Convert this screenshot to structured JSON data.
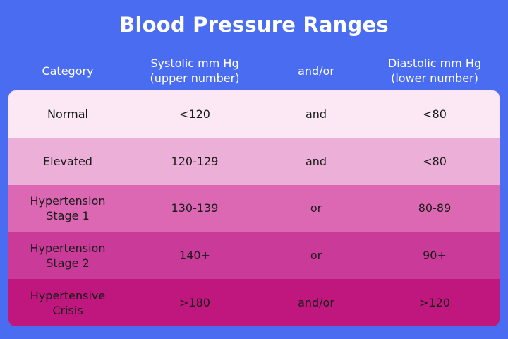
{
  "title": "Blood Pressure Ranges",
  "header": {
    "category": "Category",
    "systolic": "Systolic mm Hg\n(upper number)",
    "andor": "and/or",
    "diastolic": "Diastolic mm Hg\n(lower number)"
  },
  "rows": [
    {
      "category": "Normal",
      "systolic": "<120",
      "andor": "and",
      "diastolic": "<80",
      "color": "#fbe8f4"
    },
    {
      "category": "Elevated",
      "systolic": "120-129",
      "andor": "and",
      "diastolic": "<80",
      "color": "#ecb0d8"
    },
    {
      "category": "Hypertension\nStage 1",
      "systolic": "130-139",
      "andor": "or",
      "diastolic": "80-89",
      "color": "#dc68b4"
    },
    {
      "category": "Hypertension\nStage 2",
      "systolic": "140+",
      "andor": "or",
      "diastolic": "90+",
      "color": "#ca3a98"
    },
    {
      "category": "Hypertensive\nCrisis",
      "systolic": ">180",
      "andor": "and/or",
      "diastolic": ">120",
      "color": "#c0177f"
    }
  ],
  "colors": {
    "background": "#4a6cf0",
    "header_text": "#ffffff",
    "body_text": "#1a1a1a"
  }
}
